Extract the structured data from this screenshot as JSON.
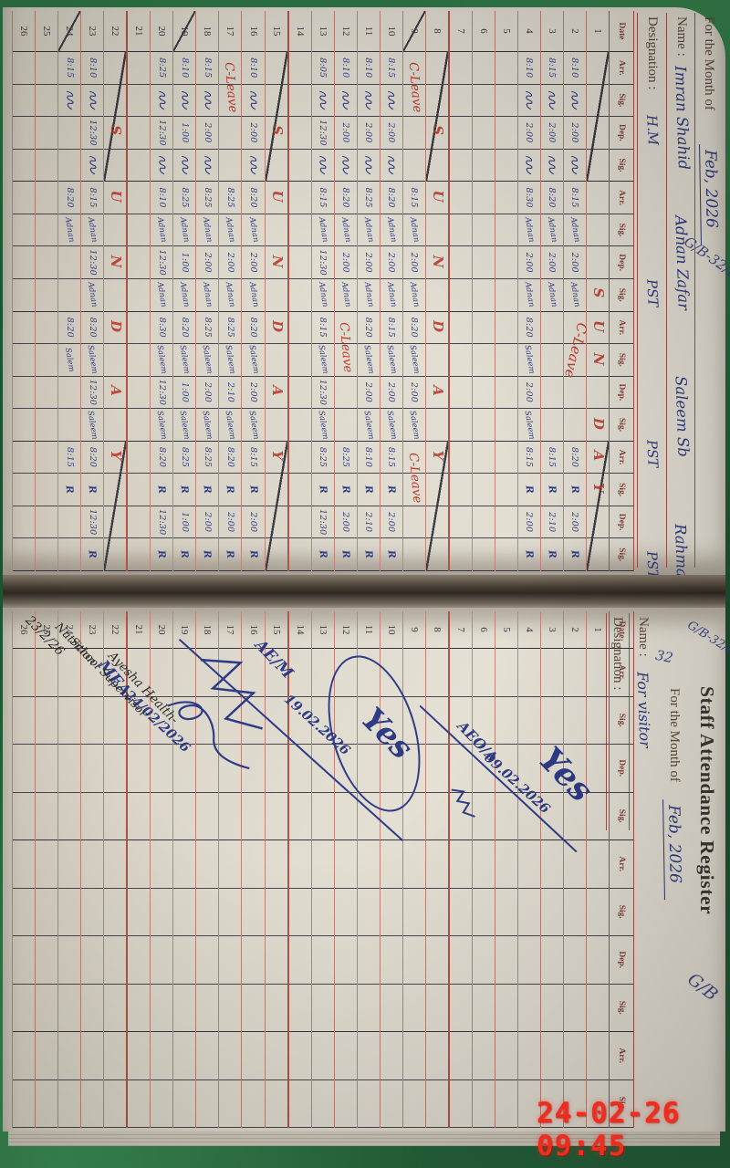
{
  "camera_timestamp": "24-02-26 09:45",
  "ink_colors": {
    "blue": "#2e3b86",
    "red": "#bf3b2e",
    "black": "#2b2b2b"
  },
  "left_page": {
    "month_label": "For the Month of",
    "month_value": "Feb, 2026",
    "header_scribble": "G/B-32/EA",
    "name_label": "Name :",
    "designation_label": "Designation :",
    "staff": [
      {
        "name": "Imran Shahid",
        "designation": "H.M"
      },
      {
        "name": "Adnan Zafar",
        "designation": "PST"
      },
      {
        "name": "Saleem Sb",
        "designation": "PST"
      },
      {
        "name": "Rahman Akht.",
        "designation": "PST"
      }
    ],
    "date_header": "Date",
    "col_headers": [
      "Arr.",
      "Sig.",
      "Dep.",
      "Sig."
    ],
    "sunday_word": "SUNDAY",
    "c_leave_label": "C-Leave",
    "struck_dates": [
      "9",
      "19",
      "24"
    ],
    "c_leaves": [
      {
        "r": 2,
        "g": 3,
        "rows": 2
      },
      {
        "r": 9,
        "g": 1,
        "rows": 1
      },
      {
        "r": 9,
        "g": 4,
        "rows": 1
      },
      {
        "r": 12,
        "g": 3,
        "rows": 1
      },
      {
        "r": 17,
        "g": 1,
        "rows": 1
      }
    ],
    "rows": [
      {
        "d": "1",
        "sun": true,
        "letters": [
          7,
          8,
          9,
          11,
          12,
          13
        ]
      },
      {
        "d": "2",
        "g": [
          [
            "8:10",
            "~",
            "2:00",
            "~"
          ],
          [
            "8:15",
            "Adnan",
            "2:00",
            "Adnan"
          ],
          [
            "",
            "",
            "",
            ""
          ],
          [
            "8:20",
            "R",
            "2:00",
            "R"
          ]
        ]
      },
      {
        "d": "3",
        "g": [
          [
            "8:15",
            "~",
            "2:00",
            "~"
          ],
          [
            "8:20",
            "Adnan",
            "2:00",
            "Adnan"
          ],
          [
            "",
            "",
            "",
            ""
          ],
          [
            "8:15",
            "R",
            "2:10",
            "R"
          ]
        ]
      },
      {
        "d": "4",
        "g": [
          [
            "8:10",
            "~",
            "2:00",
            "~"
          ],
          [
            "8:30",
            "Adnan",
            "2:00",
            "Adnan"
          ],
          [
            "8:20",
            "Saleem",
            "2:00",
            "Saleem"
          ],
          [
            "8:15",
            "R",
            "2:00",
            "R"
          ]
        ]
      },
      {
        "d": "5"
      },
      {
        "d": "6"
      },
      {
        "d": "7"
      },
      {
        "d": "8",
        "sun": true,
        "letters": [
          2,
          4,
          6,
          8,
          10,
          12
        ]
      },
      {
        "d": "9",
        "g": [
          [
            "",
            "",
            "",
            ""
          ],
          [
            "8:15",
            "Adnan",
            "2:00",
            "Adnan"
          ],
          [
            "8:20",
            "Saleem",
            "2:00",
            "Saleem"
          ],
          [
            "",
            "",
            "",
            ""
          ]
        ]
      },
      {
        "d": "10",
        "g": [
          [
            "8:15",
            "~",
            "2:00",
            "~"
          ],
          [
            "8:20",
            "Adnan",
            "2:00",
            "Adnan"
          ],
          [
            "8:15",
            "Saleem",
            "2:00",
            "Saleem"
          ],
          [
            "8:15",
            "R",
            "2:00",
            "R"
          ]
        ]
      },
      {
        "d": "11",
        "g": [
          [
            "8:10",
            "~",
            "2:00",
            "~"
          ],
          [
            "8:25",
            "Adnan",
            "2:00",
            "Adnan"
          ],
          [
            "8:20",
            "Saleem",
            "2:00",
            "Saleem"
          ],
          [
            "8:10",
            "R",
            "2:10",
            "R"
          ]
        ]
      },
      {
        "d": "12",
        "g": [
          [
            "8:10",
            "~",
            "2:00",
            "~"
          ],
          [
            "8:20",
            "Adnan",
            "2:00",
            "Adnan"
          ],
          [
            "",
            "",
            "",
            ""
          ],
          [
            "8:25",
            "R",
            "2:00",
            "R"
          ]
        ]
      },
      {
        "d": "13",
        "g": [
          [
            "8:05",
            "~",
            "12:30",
            "~"
          ],
          [
            "8:15",
            "Adnan",
            "12:30",
            "Adnan"
          ],
          [
            "8:15",
            "Saleem",
            "12:30",
            "Saleem"
          ],
          [
            "8:25",
            "R",
            "12:30",
            "R"
          ]
        ]
      },
      {
        "d": "14"
      },
      {
        "d": "15",
        "sun": true,
        "letters": [
          2,
          4,
          6,
          8,
          10,
          12
        ]
      },
      {
        "d": "16",
        "g": [
          [
            "8:10",
            "~",
            "2:00",
            "~"
          ],
          [
            "8:20",
            "Adnan",
            "2:00",
            "Adnan"
          ],
          [
            "8:20",
            "Saleem",
            "2:00",
            "Saleem"
          ],
          [
            "8:15",
            "R",
            "2:00",
            "R"
          ]
        ]
      },
      {
        "d": "17",
        "g": [
          [
            "",
            "",
            "",
            ""
          ],
          [
            "8:25",
            "Adnan",
            "2:00",
            "Adnan"
          ],
          [
            "8:25",
            "Saleem",
            "2:10",
            "Saleem"
          ],
          [
            "8:20",
            "R",
            "2:00",
            "R"
          ]
        ]
      },
      {
        "d": "18",
        "g": [
          [
            "8:15",
            "~",
            "2:00",
            "~"
          ],
          [
            "8:25",
            "Adnan",
            "2:00",
            "Adnan"
          ],
          [
            "8:25",
            "Saleem",
            "2:00",
            "Saleem"
          ],
          [
            "8:25",
            "R",
            "2:00",
            "R"
          ]
        ]
      },
      {
        "d": "19",
        "g": [
          [
            "8:10",
            "~",
            "1:00",
            "~"
          ],
          [
            "8:25",
            "Adnan",
            "1:00",
            "Adnan"
          ],
          [
            "8:20",
            "Saleem",
            "1:00",
            "Saleem"
          ],
          [
            "8:25",
            "R",
            "1:00",
            "R"
          ]
        ]
      },
      {
        "d": "20",
        "g": [
          [
            "8:25",
            "~",
            "12:30",
            "~"
          ],
          [
            "8:10",
            "Adnan",
            "12:30",
            "Adnan"
          ],
          [
            "8:30",
            "Saleem",
            "12:30",
            "Saleem"
          ],
          [
            "8:20",
            "R",
            "12:30",
            "R"
          ]
        ]
      },
      {
        "d": "21"
      },
      {
        "d": "22",
        "sun": true,
        "letters": [
          2,
          4,
          6,
          8,
          10,
          12
        ]
      },
      {
        "d": "23",
        "g": [
          [
            "8:10",
            "~",
            "12:30",
            "~"
          ],
          [
            "8:15",
            "Adnan",
            "12:30",
            "Adnan"
          ],
          [
            "8:20",
            "Saleem",
            "12:30",
            "Saleem"
          ],
          [
            "8:20",
            "R",
            "12:30",
            "R"
          ]
        ]
      },
      {
        "d": "24",
        "g": [
          [
            "8:15",
            "~",
            "",
            ""
          ],
          [
            "8:20",
            "Adnan",
            "",
            ""
          ],
          [
            "8:20",
            "Salem",
            "",
            ""
          ],
          [
            "8:15",
            "R",
            "",
            ""
          ]
        ]
      },
      {
        "d": "25"
      },
      {
        "d": "26"
      }
    ]
  },
  "right_page": {
    "title": "Staff Attendance Register",
    "month_label": "For the Month of",
    "month_value": "Feb, 2026",
    "name_label": "Name :",
    "name_value": "For visitor",
    "designation_label": "Designation :",
    "spine_number": "32",
    "corner_scribble_left": "G/B-32/EA",
    "corner_scribble_right": "G/B",
    "date_header": "Date",
    "col_headers": [
      "Arr.",
      "Sig.",
      "Dep.",
      "Sig.",
      "Arr.",
      "Sig.",
      "Dep.",
      "Sig.",
      "Arr.",
      "Sig."
    ],
    "row_count": 26,
    "annotations": [
      {
        "main": "Yes",
        "date": "09.02.2026",
        "sub": "AEO/A"
      },
      {
        "main": "Yes",
        "date": "19.02.2026",
        "sub": "AE/M"
      },
      {
        "main": "",
        "date": "24/02/2026",
        "sub": "MEA"
      },
      {
        "lines": [
          "Ayesha Health-",
          "School Supervisor",
          "Nutrition",
          "23/2/26"
        ]
      }
    ]
  }
}
